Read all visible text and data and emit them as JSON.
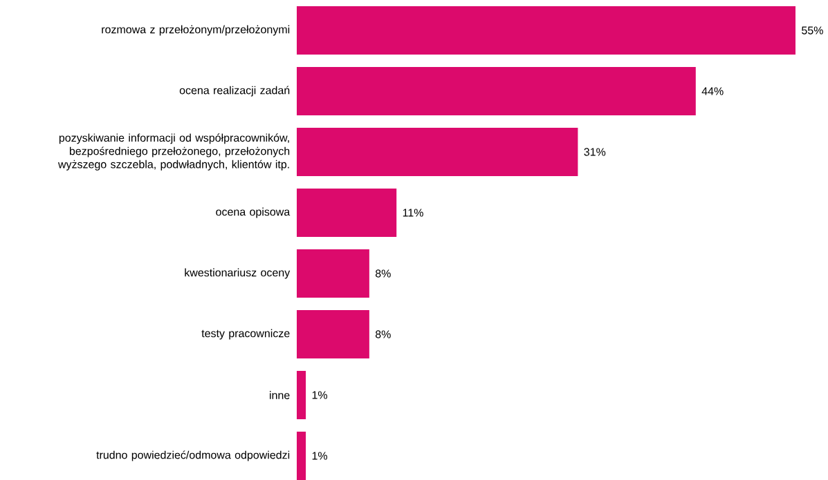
{
  "chart_data": {
    "type": "bar",
    "orientation": "horizontal",
    "categories": [
      "rozmowa z przełożonym/przełożonymi",
      "ocena realizacji zadań",
      "pozyskiwanie informacji od współpracowników, bezpośredniego przełożonego,  przełożonych wyższego szczebla, podwładnych, klientów itp.",
      "ocena opisowa",
      "kwestionariusz oceny",
      "testy pracownicze",
      "inne",
      "trudno powiedzieć/odmowa odpowiedzi"
    ],
    "values": [
      55,
      44,
      31,
      11,
      8,
      8,
      1,
      1
    ],
    "value_labels": [
      "55%",
      "44%",
      "31%",
      "11%",
      "8%",
      "8%",
      "1%",
      "1%"
    ],
    "color": "#dc0a6c"
  }
}
